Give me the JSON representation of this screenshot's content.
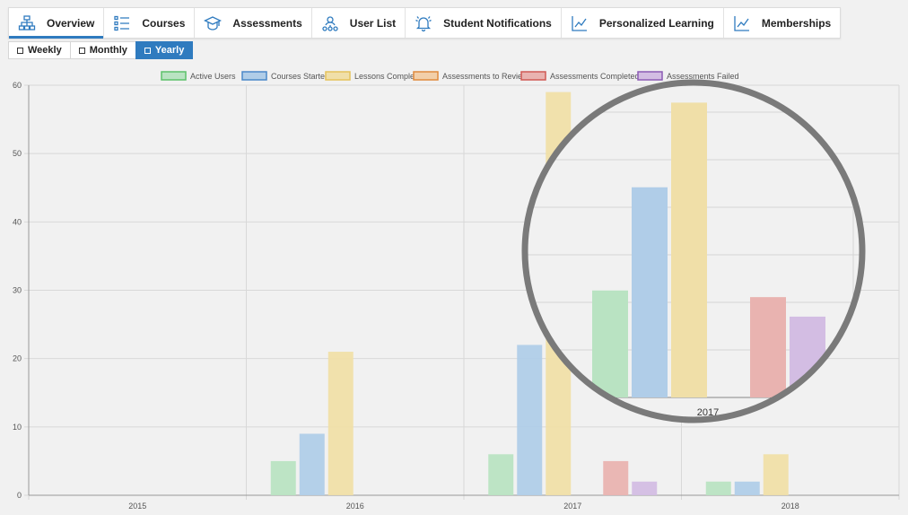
{
  "tabs": [
    {
      "label": "Overview",
      "icon": "sitemap-icon",
      "active": true
    },
    {
      "label": "Courses",
      "icon": "list-icon",
      "active": false
    },
    {
      "label": "Assessments",
      "icon": "graduation-cap-icon",
      "active": false
    },
    {
      "label": "User List",
      "icon": "user-network-icon",
      "active": false
    },
    {
      "label": "Student Notifications",
      "icon": "bell-icon",
      "active": false
    },
    {
      "label": "Personalized Learning",
      "icon": "line-chart-icon",
      "active": false
    },
    {
      "label": "Memberships",
      "icon": "line-chart-icon",
      "active": false
    }
  ],
  "periods": [
    {
      "label": "Weekly",
      "active": false
    },
    {
      "label": "Monthly",
      "active": false
    },
    {
      "label": "Yearly",
      "active": true
    }
  ],
  "colors": {
    "accent": "#2f7bbf"
  },
  "chart_data": {
    "type": "bar",
    "categories": [
      "2015",
      "2016",
      "2017",
      "2018"
    ],
    "ylim": [
      0,
      60
    ],
    "yticks": [
      0,
      10,
      20,
      30,
      40,
      50,
      60
    ],
    "legend_position": "top",
    "grid": true,
    "series": [
      {
        "name": "Active Users",
        "values": [
          0,
          5,
          6,
          2
        ],
        "fill": "#b9e3c2",
        "stroke": "#5cc16a"
      },
      {
        "name": "Courses Started",
        "values": [
          0,
          9,
          22,
          2
        ],
        "fill": "#b0cde8",
        "stroke": "#4a88c9"
      },
      {
        "name": "Lessons Completed",
        "values": [
          0,
          21,
          59,
          6
        ],
        "fill": "#f0dfa8",
        "stroke": "#e6c25a"
      },
      {
        "name": "Assessments to Review",
        "values": [
          0,
          0,
          0,
          0
        ],
        "fill": "#f2cfa9",
        "stroke": "#e08a3e"
      },
      {
        "name": "Assessments Completed",
        "values": [
          0,
          0,
          5,
          0
        ],
        "fill": "#e9b3b0",
        "stroke": "#d05a55"
      },
      {
        "name": "Assessments Failed",
        "values": [
          0,
          0,
          2,
          0
        ],
        "fill": "#d3bde3",
        "stroke": "#8c5bb5"
      }
    ],
    "zoom": {
      "category": "2017",
      "values": [
        22.5,
        44.2,
        62,
        0,
        21.1,
        17
      ]
    }
  }
}
